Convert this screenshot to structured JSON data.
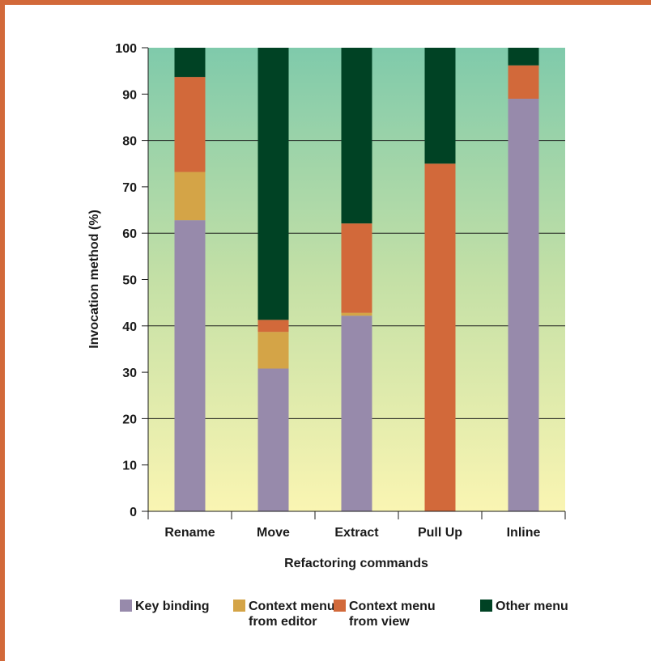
{
  "chart_data": {
    "type": "bar",
    "stacked": true,
    "title": "",
    "xlabel": "Refactoring commands",
    "ylabel": "Invocation method (%)",
    "ylim": [
      0,
      100
    ],
    "yticks": [
      0,
      10,
      20,
      30,
      40,
      50,
      60,
      70,
      80,
      90,
      100
    ],
    "grid": true,
    "categories": [
      "Rename",
      "Move",
      "Extract",
      "Pull Up",
      "Inline"
    ],
    "series": [
      {
        "name": "Key binding",
        "color": "#978aab",
        "values": [
          62.8,
          30.8,
          42.2,
          0,
          89.0
        ]
      },
      {
        "name": "Context menu\nfrom editor",
        "color": "#d4a447",
        "values": [
          10.4,
          7.9,
          0.6,
          0,
          0
        ]
      },
      {
        "name": "Context menu\nfrom view",
        "color": "#d2693a",
        "values": [
          20.5,
          2.6,
          19.3,
          75.0,
          7.2
        ]
      },
      {
        "name": "Other menu",
        "color": "#004224",
        "values": [
          6.3,
          58.7,
          37.9,
          25.0,
          3.8
        ]
      }
    ],
    "legend_position": "bottom"
  }
}
